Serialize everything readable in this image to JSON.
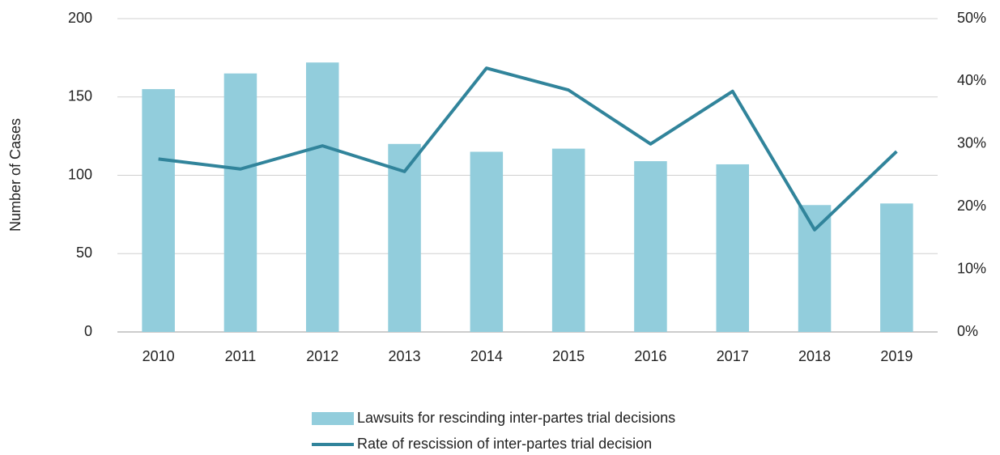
{
  "chart_data": {
    "type": "bar-line",
    "y_label": "Number of Cases",
    "categories": [
      "2010",
      "2011",
      "2012",
      "2013",
      "2014",
      "2015",
      "2016",
      "2017",
      "2018",
      "2019"
    ],
    "series": [
      {
        "name": "Lawsuits for rescinding inter-partes trial decisions",
        "type": "bar",
        "color": "#92cddc",
        "values": [
          155,
          165,
          172,
          120,
          115,
          117,
          109,
          107,
          81,
          82
        ]
      },
      {
        "name": "Rate of rescission of inter-partes trial decision",
        "type": "line",
        "color": "#31849b",
        "axis": "y2",
        "values": [
          27.6,
          26.0,
          29.7,
          25.6,
          42.1,
          38.6,
          30.0,
          38.4,
          16.3,
          28.8
        ]
      }
    ],
    "ylim": [
      0,
      200
    ],
    "yticks": [
      0,
      50,
      100,
      150,
      200
    ],
    "y2lim": [
      0,
      50
    ],
    "y2ticks": [
      {
        "value": 0,
        "label": "0%"
      },
      {
        "value": 10,
        "label": "10%"
      },
      {
        "value": 20,
        "label": "20%"
      },
      {
        "value": 30,
        "label": "30%"
      },
      {
        "value": 40,
        "label": "40%"
      },
      {
        "value": 50,
        "label": "50%"
      }
    ],
    "grid": true
  }
}
